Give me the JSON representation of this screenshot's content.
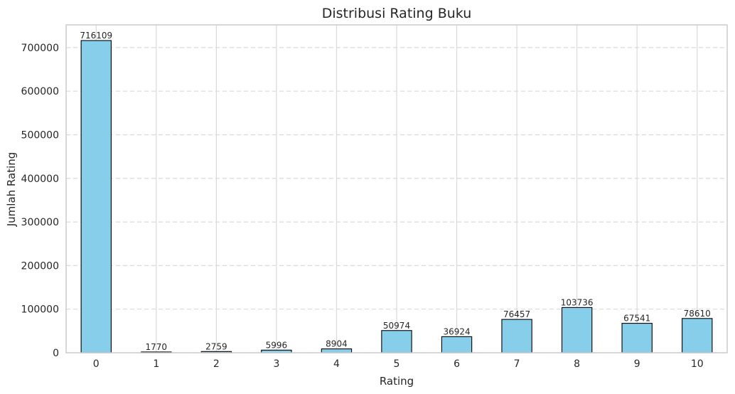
{
  "chart_data": {
    "type": "bar",
    "title": "Distribusi Rating Buku",
    "xlabel": "Rating",
    "ylabel": "Jumlah Rating",
    "categories": [
      "0",
      "1",
      "2",
      "3",
      "4",
      "5",
      "6",
      "7",
      "8",
      "9",
      "10"
    ],
    "values": [
      716109,
      1770,
      2759,
      5996,
      8904,
      50974,
      36924,
      76457,
      103736,
      67541,
      78610
    ],
    "value_labels": [
      "716109",
      "1770",
      "2759",
      "5996",
      "8904",
      "50974",
      "36924",
      "76457",
      "103736",
      "67541",
      "78610"
    ],
    "ylim": [
      0,
      752000
    ],
    "yticks": [
      0,
      100000,
      200000,
      300000,
      400000,
      500000,
      600000,
      700000
    ],
    "ytick_labels": [
      "0",
      "100000",
      "200000",
      "300000",
      "400000",
      "500000",
      "600000",
      "700000"
    ],
    "grid": {
      "x": "solid",
      "y": "dashed"
    },
    "bar_color": "#87CEEB",
    "bar_edge_color": "#000000",
    "grid_color": "#D9D9D9",
    "spine_color": "#CCCCCC"
  }
}
